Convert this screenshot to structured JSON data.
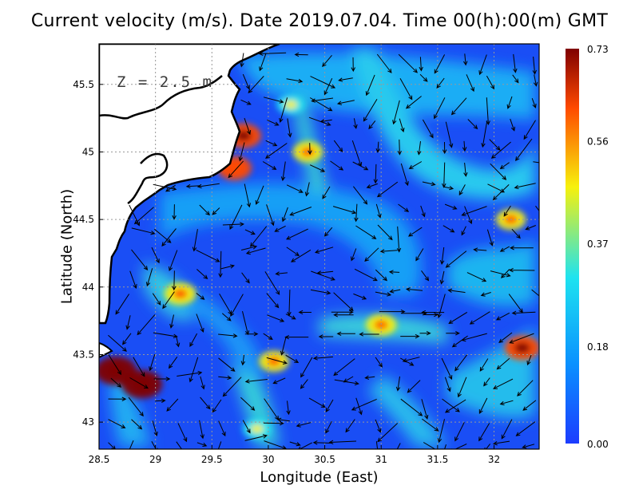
{
  "title": "Current velocity (m/s). Date 2019.07.04. Time 00(h):00(m) GMT",
  "depth_label": "Z = 2.5 m",
  "chart_data": {
    "type": "heatmap",
    "title": "Current velocity (m/s). Date 2019.07.04. Time 00(h):00(m) GMT",
    "xlabel": "Longitude (East)",
    "ylabel": "Latitude (North)",
    "xlim": [
      28.5,
      32.4
    ],
    "ylim": [
      42.8,
      45.8
    ],
    "x_ticks": [
      28.5,
      29,
      29.5,
      30,
      30.5,
      31,
      31.5,
      32
    ],
    "x_tick_labels": [
      "28.5",
      "29",
      "29.5",
      "30",
      "30.5",
      "31",
      "31.5",
      "32"
    ],
    "y_ticks": [
      43,
      43.5,
      44,
      44.5,
      45,
      45.5
    ],
    "y_tick_labels": [
      "43",
      "43.5",
      "44",
      "44.5",
      "45",
      "45.5"
    ],
    "grid": true,
    "colorbar": {
      "min": 0.0,
      "max": 0.73,
      "tick_values": [
        0.0,
        0.18,
        0.37,
        0.56,
        0.73
      ],
      "tick_labels": [
        "0.00",
        "0.18",
        "0.37",
        "0.56",
        "0.73"
      ],
      "colors": [
        "#1c3cff",
        "#0a90ff",
        "#1ee3f0",
        "#f7f10c",
        "#ff4a00",
        "#7f0000"
      ]
    },
    "hotspots": [
      {
        "lon": 28.65,
        "lat": 43.38,
        "value": 0.72
      },
      {
        "lon": 28.88,
        "lat": 43.28,
        "value": 0.7
      },
      {
        "lon": 29.78,
        "lat": 45.12,
        "value": 0.55
      },
      {
        "lon": 29.7,
        "lat": 44.88,
        "value": 0.52
      },
      {
        "lon": 32.25,
        "lat": 43.55,
        "value": 0.55
      },
      {
        "lon": 29.22,
        "lat": 43.95,
        "value": 0.45
      },
      {
        "lon": 30.05,
        "lat": 43.45,
        "value": 0.4
      },
      {
        "lon": 30.35,
        "lat": 45.0,
        "value": 0.4
      },
      {
        "lon": 31.0,
        "lat": 43.72,
        "value": 0.42
      },
      {
        "lon": 32.15,
        "lat": 44.5,
        "value": 0.4
      },
      {
        "lon": 30.2,
        "lat": 45.35,
        "value": 0.35
      },
      {
        "lon": 29.9,
        "lat": 42.95,
        "value": 0.35
      }
    ],
    "land": "north-west (Danube delta and coast, grey dotted background)",
    "vector_field": "black arrows showing current direction"
  }
}
